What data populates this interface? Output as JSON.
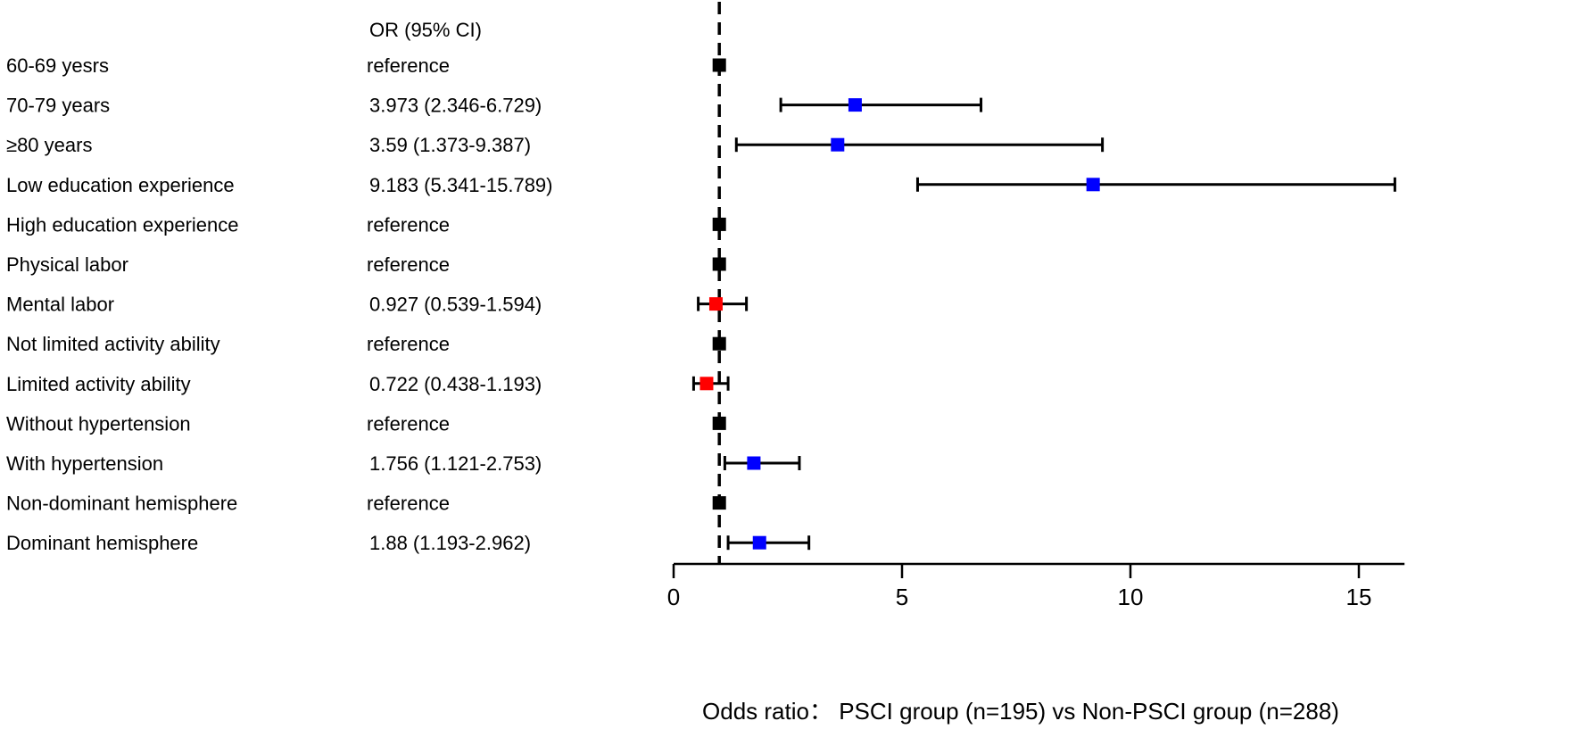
{
  "chart_data": {
    "type": "forest",
    "column_header": "OR (95% CI)",
    "xlabel": "Odds ratio： PSCI group (n=195) vs Non-PSCI group (n=288)",
    "xlim": [
      0,
      16
    ],
    "xticks": [
      0,
      5,
      10,
      15
    ],
    "reference_line": 1,
    "colors": {
      "reference": "#000000",
      "significant": "#0000ff",
      "nonsignificant": "#ff0000",
      "line": "#000000"
    },
    "rows": [
      {
        "label": "60-69 yesrs",
        "or_text": "reference",
        "or": 1,
        "lo": null,
        "hi": null,
        "kind": "reference"
      },
      {
        "label": "70-79 years",
        "or_text": "3.973 (2.346-6.729)",
        "or": 3.973,
        "lo": 2.346,
        "hi": 6.729,
        "kind": "significant"
      },
      {
        "label": "≥80 years",
        "or_text": "3.59 (1.373-9.387)",
        "or": 3.59,
        "lo": 1.373,
        "hi": 9.387,
        "kind": "significant"
      },
      {
        "label": "Low education experience",
        "or_text": "9.183 (5.341-15.789)",
        "or": 9.183,
        "lo": 5.341,
        "hi": 15.789,
        "kind": "significant"
      },
      {
        "label": "High education experience",
        "or_text": "reference",
        "or": 1,
        "lo": null,
        "hi": null,
        "kind": "reference"
      },
      {
        "label": "Physical labor",
        "or_text": "reference",
        "or": 1,
        "lo": null,
        "hi": null,
        "kind": "reference"
      },
      {
        "label": "Mental labor",
        "or_text": "0.927 (0.539-1.594)",
        "or": 0.927,
        "lo": 0.539,
        "hi": 1.594,
        "kind": "nonsignificant"
      },
      {
        "label": "Not limited activity ability",
        "or_text": "reference",
        "or": 1,
        "lo": null,
        "hi": null,
        "kind": "reference"
      },
      {
        "label": "Limited activity ability",
        "or_text": "0.722 (0.438-1.193)",
        "or": 0.722,
        "lo": 0.438,
        "hi": 1.193,
        "kind": "nonsignificant"
      },
      {
        "label": "Without hypertension",
        "or_text": "reference",
        "or": 1,
        "lo": null,
        "hi": null,
        "kind": "reference"
      },
      {
        "label": "With hypertension",
        "or_text": "1.756 (1.121-2.753)",
        "or": 1.756,
        "lo": 1.121,
        "hi": 2.753,
        "kind": "significant"
      },
      {
        "label": "Non-dominant hemisphere",
        "or_text": "reference",
        "or": 1,
        "lo": null,
        "hi": null,
        "kind": "reference"
      },
      {
        "label": "Dominant hemisphere",
        "or_text": "1.88 (1.193-2.962)",
        "or": 1.88,
        "lo": 1.193,
        "hi": 2.962,
        "kind": "significant"
      }
    ]
  }
}
